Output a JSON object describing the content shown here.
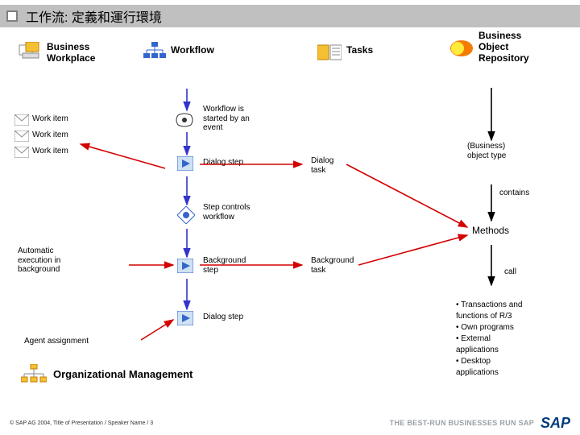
{
  "title": "工作流: 定義和運行環境",
  "copyright": "© SAP AG 2004, Title of Presentation / Speaker Name / 3",
  "tagline": "THE BEST-RUN BUSINESSES RUN SAP",
  "sap": "SAP",
  "colors": {
    "title_bar": "#c0c0c0",
    "arrow_blue": "#3333cc",
    "arrow_red": "#d40000",
    "arrow_black": "#000000",
    "icon_blue": "#3366cc",
    "icon_yellow": "#f5c033",
    "icon_orange": "#f57c00",
    "icon_green": "#2e7d32"
  },
  "nodes": {
    "business_workplace": "Business\nWorkplace",
    "workflow": "Workflow",
    "tasks": "Tasks",
    "bor": "Business\nObject\nRepository",
    "work_item1": "Work item",
    "work_item2": "Work item",
    "work_item3": "Work item",
    "wf_event": "Workflow is\nstarted by an\nevent",
    "dialog_step1": "Dialog step",
    "step_controls": "Step controls\nworkflow",
    "background_step": "Background\nstep",
    "dialog_step2": "Dialog step",
    "dialog_task": "Dialog\ntask",
    "background_task": "Background\ntask",
    "obj_type": "(Business)\nobject type",
    "contains": "contains",
    "methods": "Methods",
    "call": "call",
    "auto_exec": "Automatic\nexecution in\nbackground",
    "agent": "Agent assignment",
    "org_mgmt": "Organizational Management"
  },
  "bullets": [
    "• Transactions and",
    "  functions of R/3",
    "• Own programs",
    "• External",
    "  applications",
    "• Desktop",
    "  applications"
  ],
  "chart_type": "flowchart",
  "arrows": [
    {
      "from": [
        232,
        76
      ],
      "to": [
        232,
        103
      ],
      "color": "#3333cc"
    },
    {
      "from": [
        232,
        130
      ],
      "to": [
        232,
        158
      ],
      "color": "#3333cc"
    },
    {
      "from": [
        232,
        185
      ],
      "to": [
        232,
        220
      ],
      "color": "#3333cc"
    },
    {
      "from": [
        232,
        250
      ],
      "to": [
        232,
        285
      ],
      "color": "#3333cc"
    },
    {
      "from": [
        232,
        312
      ],
      "to": [
        232,
        350
      ],
      "color": "#3333cc"
    },
    {
      "from": [
        205,
        175
      ],
      "to": [
        100,
        145
      ],
      "color": "#d40000"
    },
    {
      "from": [
        248,
        295
      ],
      "to": [
        375,
        295
      ],
      "color": "#d40000"
    },
    {
      "from": [
        248,
        170
      ],
      "to": [
        375,
        170
      ],
      "color": "#d40000"
    },
    {
      "from": [
        430,
        170
      ],
      "to": [
        580,
        248
      ],
      "color": "#d40000"
    },
    {
      "from": [
        445,
        295
      ],
      "to": [
        580,
        258
      ],
      "color": "#d40000"
    },
    {
      "from": [
        160,
        295
      ],
      "to": [
        215,
        295
      ],
      "color": "#d40000"
    },
    {
      "from": [
        175,
        388
      ],
      "to": [
        215,
        363
      ],
      "color": "#d40000"
    },
    {
      "from": [
        610,
        75
      ],
      "to": [
        610,
        140
      ],
      "color": "#000000"
    },
    {
      "from": [
        610,
        195
      ],
      "to": [
        610,
        240
      ],
      "color": "#000000"
    },
    {
      "from": [
        610,
        270
      ],
      "to": [
        610,
        320
      ],
      "color": "#000000"
    }
  ]
}
